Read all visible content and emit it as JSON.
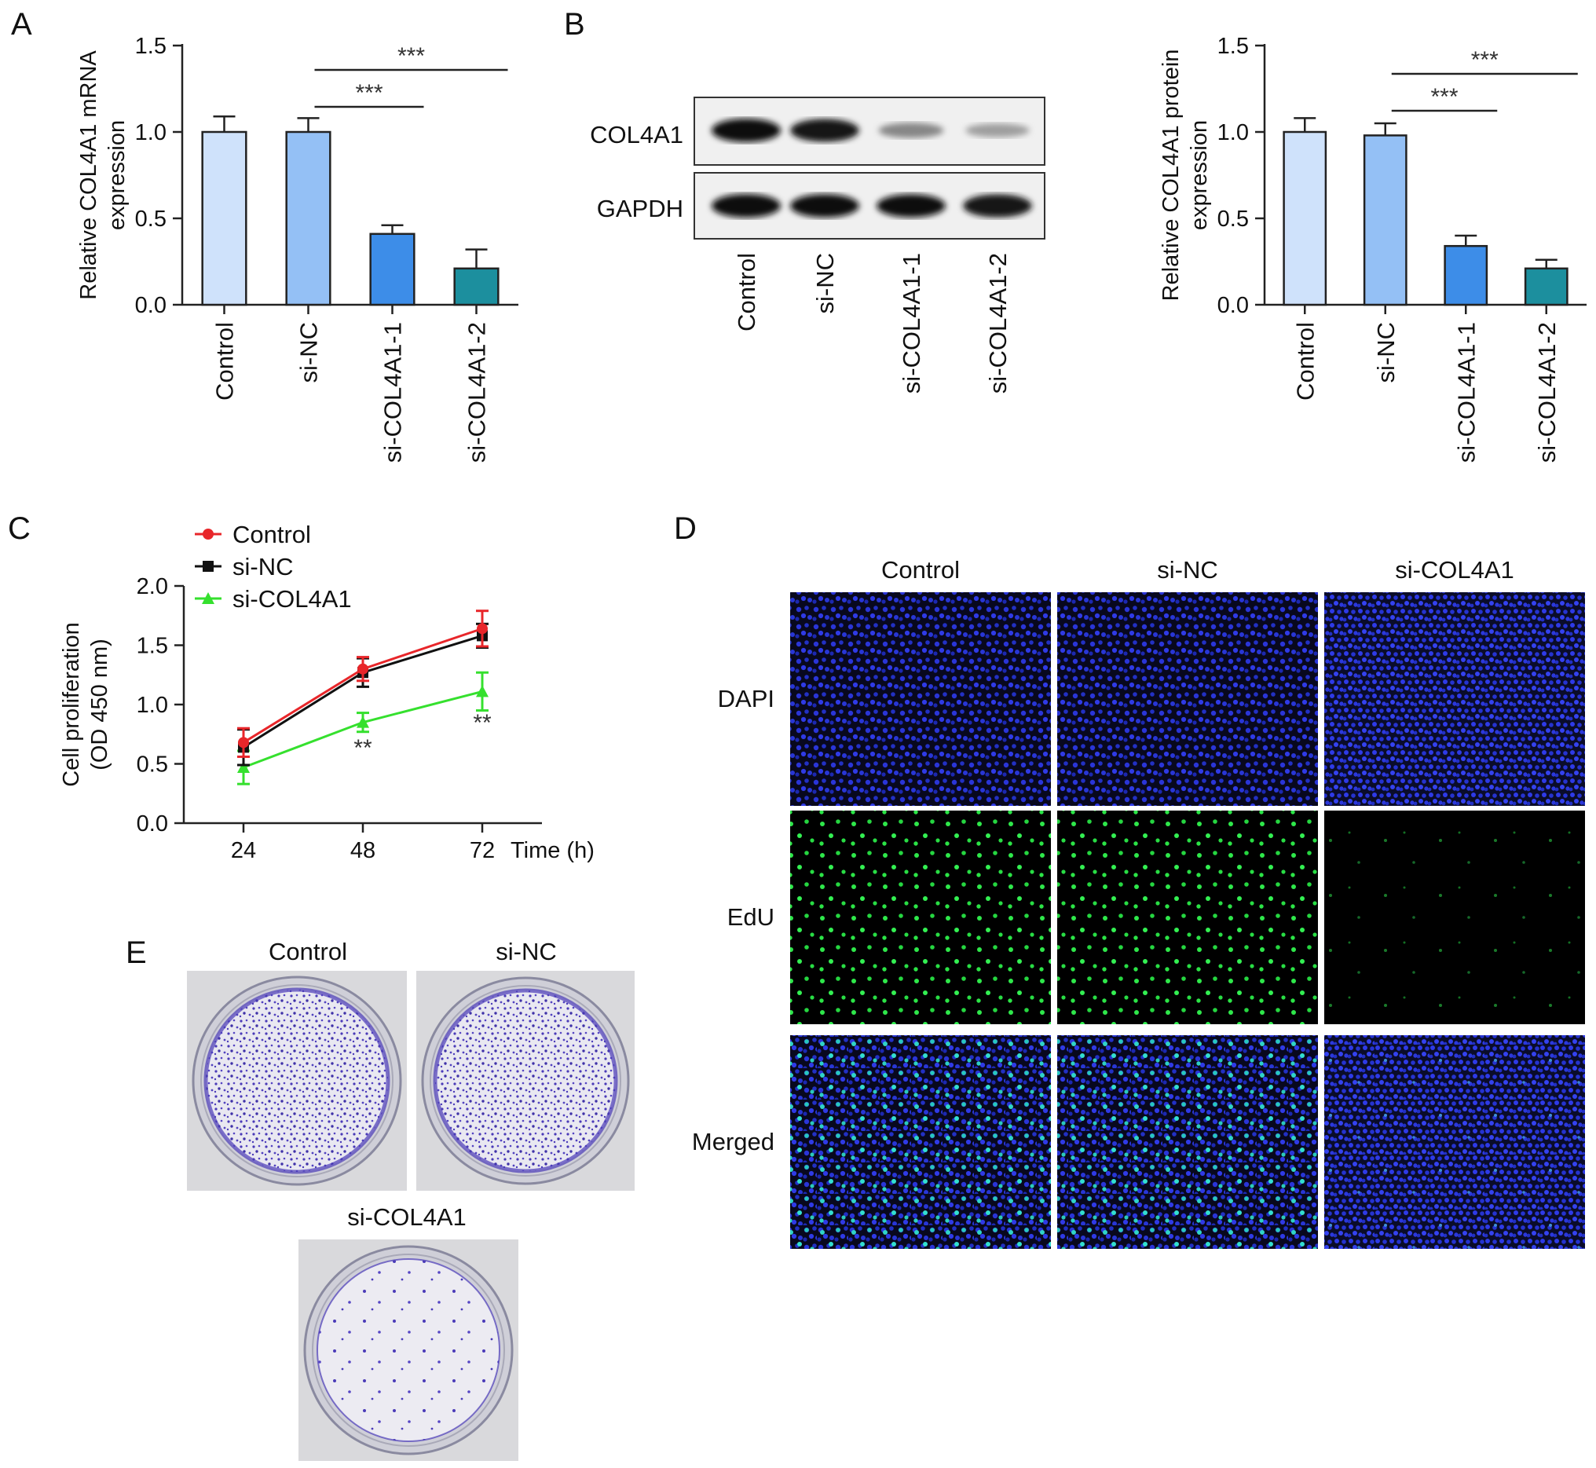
{
  "panels": {
    "A": {
      "letter": "A",
      "chart_data": {
        "type": "bar",
        "categories": [
          "Control",
          "si-NC",
          "si-COL4A1-1",
          "si-COL4A1-2"
        ],
        "values": [
          1.0,
          1.0,
          0.41,
          0.21
        ],
        "errors": [
          0.09,
          0.08,
          0.05,
          0.11
        ],
        "colors": [
          "#cfe2fb",
          "#94c0f5",
          "#3d8de8",
          "#1c8f9e"
        ],
        "ylabel": [
          "Relative COL4A1 mRNA",
          "expression"
        ],
        "ylim": [
          0,
          1.5
        ],
        "yticks": [
          "0.0",
          "0.5",
          "1.0",
          "1.5"
        ],
        "significance": [
          {
            "from": 1,
            "to": 2,
            "label": "***"
          },
          {
            "from": 1,
            "to": 3,
            "label": "***"
          }
        ]
      }
    },
    "B": {
      "letter": "B",
      "blot": {
        "rows": [
          "COL4A1",
          "GAPDH"
        ],
        "lanes": [
          "Control",
          "si-NC",
          "si-COL4A1-1",
          "si-COL4A1-2"
        ],
        "intensity": {
          "COL4A1": [
            1.0,
            0.95,
            0.35,
            0.22
          ],
          "GAPDH": [
            1.0,
            0.98,
            0.97,
            0.96
          ]
        }
      },
      "chart_data": {
        "type": "bar",
        "categories": [
          "Control",
          "si-NC",
          "si-COL4A1-1",
          "si-COL4A1-2"
        ],
        "values": [
          1.0,
          0.98,
          0.34,
          0.21
        ],
        "errors": [
          0.08,
          0.07,
          0.06,
          0.05
        ],
        "colors": [
          "#cfe2fb",
          "#94c0f5",
          "#3d8de8",
          "#1c8f9e"
        ],
        "ylabel": [
          "Relative COL4A1 protein",
          "expression"
        ],
        "ylim": [
          0,
          1.5
        ],
        "yticks": [
          "0.0",
          "0.5",
          "1.0",
          "1.5"
        ],
        "significance": [
          {
            "from": 1,
            "to": 2,
            "label": "***"
          },
          {
            "from": 1,
            "to": 3,
            "label": "***"
          }
        ]
      }
    },
    "C": {
      "letter": "C",
      "chart_data": {
        "type": "line",
        "x": [
          24,
          48,
          72
        ],
        "xticks": [
          "24",
          "48",
          "72"
        ],
        "xlabel": "Time (h)",
        "ylabel": [
          "Cell proliferation",
          "(OD 450 nm)"
        ],
        "ylim": [
          0,
          2.0
        ],
        "yticks": [
          "0.0",
          "0.5",
          "1.0",
          "1.5",
          "2.0"
        ],
        "legend_position": "top-left",
        "series": [
          {
            "name": "Control",
            "color": "#e8262a",
            "marker": "circle",
            "values": [
              0.68,
              1.3,
              1.64
            ],
            "errors": [
              0.12,
              0.1,
              0.15
            ]
          },
          {
            "name": "si-NC",
            "color": "#111111",
            "marker": "square",
            "values": [
              0.64,
              1.27,
              1.58
            ],
            "errors": [
              0.15,
              0.12,
              0.1
            ]
          },
          {
            "name": "si-COL4A1",
            "color": "#35e02e",
            "marker": "triangle",
            "values": [
              0.47,
              0.85,
              1.11
            ],
            "errors": [
              0.14,
              0.08,
              0.16
            ]
          }
        ],
        "annotations": [
          {
            "x": 48,
            "label": "**"
          },
          {
            "x": 72,
            "label": "**"
          }
        ]
      }
    },
    "D": {
      "letter": "D",
      "columns": [
        "Control",
        "si-NC",
        "si-COL4A1"
      ],
      "rows": [
        "DAPI",
        "EdU",
        "Merged"
      ],
      "edu_density": [
        1.0,
        0.95,
        0.25
      ]
    },
    "E": {
      "letter": "E",
      "dishes": [
        "Control",
        "si-NC",
        "si-COL4A1"
      ],
      "colony_density": [
        1.0,
        0.95,
        0.22
      ],
      "stain_color": "#4a3ab8"
    }
  }
}
